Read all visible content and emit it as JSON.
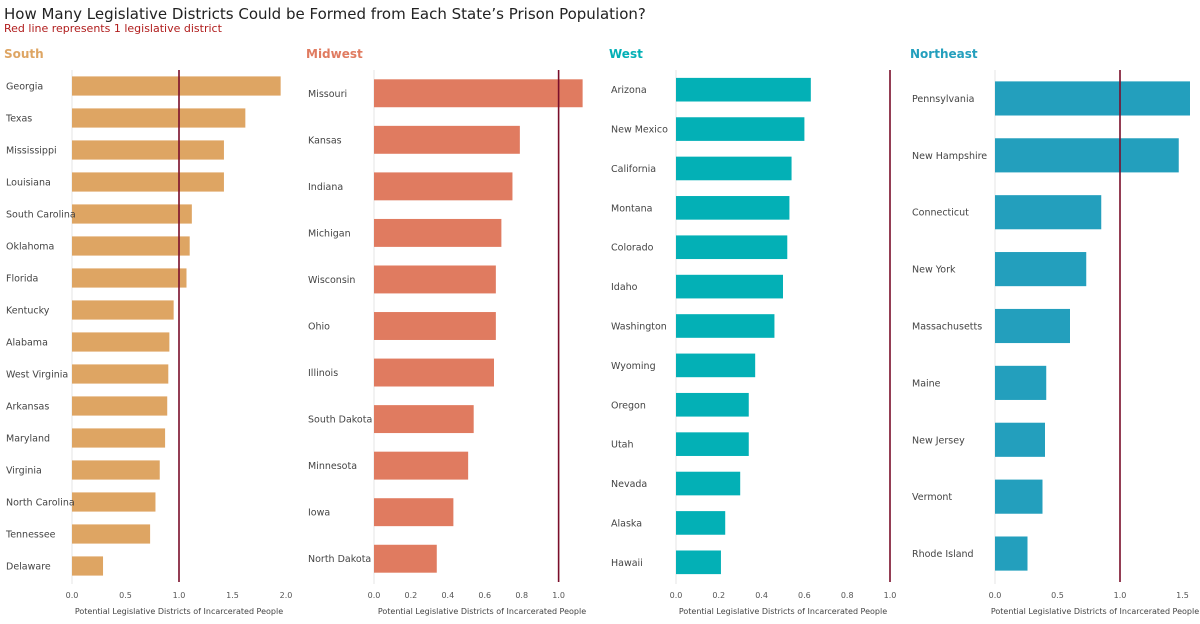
{
  "title": "How Many Legislative Districts Could be Formed from Each State’s Prison Population?",
  "subtitle": "Red line represents 1 legislative district",
  "reference_color": "#7a0e2a",
  "chart_data": [
    {
      "type": "bar",
      "region": "South",
      "color": "#dea563",
      "title": "South",
      "xlabel": "Potential Legislative Districts of Incarcerated People",
      "xlim": [
        0,
        2.0
      ],
      "ticks": [
        "0.0",
        "0.5",
        "1.0",
        "1.5",
        "2.0"
      ],
      "reference_line": 1.0,
      "categories": [
        "Georgia",
        "Texas",
        "Mississippi",
        "Louisiana",
        "South Carolina",
        "Oklahoma",
        "Florida",
        "Kentucky",
        "Alabama",
        "West Virginia",
        "Arkansas",
        "Maryland",
        "Virginia",
        "North Carolina",
        "Tennessee",
        "Delaware"
      ],
      "values": [
        1.95,
        1.62,
        1.42,
        1.42,
        1.12,
        1.1,
        1.07,
        0.95,
        0.91,
        0.9,
        0.89,
        0.87,
        0.82,
        0.78,
        0.73,
        0.29
      ]
    },
    {
      "type": "bar",
      "region": "Midwest",
      "color": "#e07b60",
      "title": "Midwest",
      "xlabel": "Potential Legislative Districts of Incarcerated People",
      "xlim": [
        0,
        1.17
      ],
      "ticks": [
        "0.0",
        "0.2",
        "0.4",
        "0.6",
        "0.8",
        "1.0"
      ],
      "reference_line": 1.0,
      "categories": [
        "Missouri",
        "Kansas",
        "Indiana",
        "Michigan",
        "Wisconsin",
        "Ohio",
        "Illinois",
        "South Dakota",
        "Minnesota",
        "Iowa",
        "North Dakota"
      ],
      "values": [
        1.13,
        0.79,
        0.75,
        0.69,
        0.66,
        0.66,
        0.65,
        0.54,
        0.51,
        0.43,
        0.34
      ]
    },
    {
      "type": "bar",
      "region": "West",
      "color": "#03b0b6",
      "title": "West",
      "xlabel": "Potential Legislative Districts of Incarcerated People",
      "xlim": [
        0,
        1.0
      ],
      "ticks": [
        "0.0",
        "0.2",
        "0.4",
        "0.6",
        "0.8",
        "1.0"
      ],
      "reference_line": 1.0,
      "categories": [
        "Arizona",
        "New Mexico",
        "California",
        "Montana",
        "Colorado",
        "Idaho",
        "Washington",
        "Wyoming",
        "Oregon",
        "Utah",
        "Nevada",
        "Alaska",
        "Hawaii"
      ],
      "values": [
        0.63,
        0.6,
        0.54,
        0.53,
        0.52,
        0.5,
        0.46,
        0.37,
        0.34,
        0.34,
        0.3,
        0.23,
        0.21
      ]
    },
    {
      "type": "bar",
      "region": "Northeast",
      "color": "#239fbd",
      "title": "Northeast",
      "xlabel": "Potential Legislative Districts of Incarcerated People",
      "xlim": [
        0,
        1.6
      ],
      "ticks": [
        "0.0",
        "0.5",
        "1.0",
        "1.5"
      ],
      "reference_line": 1.0,
      "categories": [
        "Pennsylvania",
        "New Hampshire",
        "Connecticut",
        "New York",
        "Massachusetts",
        "Maine",
        "New Jersey",
        "Vermont",
        "Rhode Island"
      ],
      "values": [
        1.56,
        1.47,
        0.85,
        0.73,
        0.6,
        0.41,
        0.4,
        0.38,
        0.26
      ]
    }
  ]
}
